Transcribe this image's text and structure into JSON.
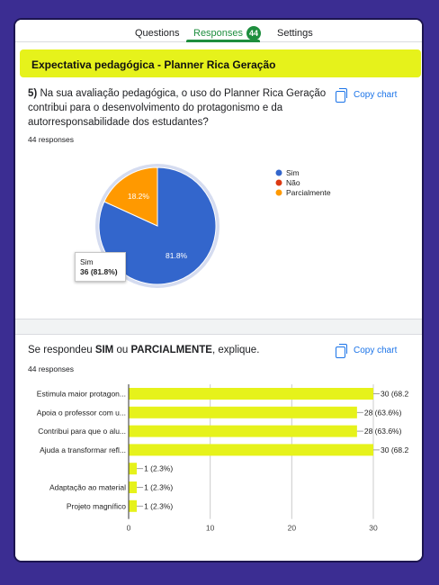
{
  "tabs": [
    {
      "label": "Questions"
    },
    {
      "label": "Responses",
      "count": "44"
    },
    {
      "label": "Settings"
    }
  ],
  "section_title": "Expectativa pedagógica - Planner Rica Geração",
  "questions": [
    {
      "number": "5)",
      "text": "Na sua avaliação pedagógica, o uso do Planner Rica Geração contribui para o desenvolvimento do protagonismo e da autorresponsabilidade dos estudantes?",
      "responses": "44 responses",
      "copy_label": "Copy chart"
    },
    {
      "text_before": "Se respondeu ",
      "text_bold1": "SIM",
      "text_mid": " ou ",
      "text_bold2": "PARCIALMENTE",
      "text_after": ", explique.",
      "responses": "44 responses",
      "copy_label": "Copy chart"
    }
  ],
  "tooltip": {
    "label": "Sim",
    "value": "36 (81.8%)"
  },
  "colors": {
    "accent": "#1e8e3e",
    "highlight": "#e6f21b",
    "blue": "#3366cc",
    "red": "#dc3912",
    "orange": "#ff9900",
    "link": "#1a73e8"
  },
  "chart_data": [
    {
      "type": "pie",
      "categories": [
        "Sim",
        "Não",
        "Parcialmente"
      ],
      "values": [
        36,
        0,
        8
      ],
      "slice_labels": [
        "81.8%",
        "",
        "18.2%"
      ],
      "colors": [
        "#3366cc",
        "#dc3912",
        "#ff9900"
      ],
      "legend": "right"
    },
    {
      "type": "bar",
      "orientation": "horizontal",
      "categories": [
        "Estimula maior protagon...",
        "Apoia o professor com u...",
        "Contribui para que o alu...",
        "Ajuda a transformar refl...",
        "",
        "Adaptação ao material",
        "Projeto magnífico"
      ],
      "values": [
        30,
        28,
        28,
        30,
        1,
        1,
        1
      ],
      "value_labels": [
        "30 (68.2",
        "28 (63.6%)",
        "28 (63.6%)",
        "30 (68.2",
        "1 (2.3%)",
        "1 (2.3%)",
        "1 (2.3%)"
      ],
      "xticks": [
        "0",
        "10",
        "20",
        "30"
      ],
      "xlim": [
        0,
        30
      ],
      "color": "#e6f21b",
      "grid": true
    }
  ]
}
